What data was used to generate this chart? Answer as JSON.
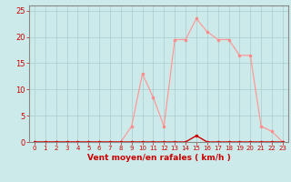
{
  "x": [
    0,
    1,
    2,
    3,
    4,
    5,
    6,
    7,
    8,
    9,
    10,
    11,
    12,
    13,
    14,
    15,
    16,
    17,
    18,
    19,
    20,
    21,
    22,
    23
  ],
  "y_rafales": [
    0,
    0,
    0,
    0,
    0,
    0,
    0,
    0,
    0,
    3,
    13,
    8.5,
    3,
    19.5,
    19.5,
    23.5,
    21,
    19.5,
    19.5,
    16.5,
    16.5,
    3,
    2,
    0
  ],
  "y_moyen": [
    0,
    0,
    0,
    0,
    0,
    0,
    0,
    0,
    0,
    0,
    0,
    0,
    0,
    0,
    0,
    1.2,
    0,
    0,
    0,
    0,
    0,
    0,
    0,
    0
  ],
  "xlabel": "Vent moyen/en rafales ( km/h )",
  "ylim": [
    0,
    26
  ],
  "xlim": [
    -0.5,
    23.5
  ],
  "yticks": [
    0,
    5,
    10,
    15,
    20,
    25
  ],
  "xticks": [
    0,
    1,
    2,
    3,
    4,
    5,
    6,
    7,
    8,
    9,
    10,
    11,
    12,
    13,
    14,
    15,
    16,
    17,
    18,
    19,
    20,
    21,
    22,
    23
  ],
  "bg_color": "#cceaea",
  "grid_color": "#aacccc",
  "line_color_rafales": "#ff9999",
  "line_color_moyen": "#cc0000",
  "marker_color_rafales": "#ff8888",
  "marker_color_moyen": "#cc0000",
  "xlabel_color": "#cc0000",
  "tick_color": "#cc0000",
  "axis_color": "#888888",
  "xlabel_fontsize": 6.5,
  "xlabel_fontweight": "bold",
  "tick_fontsize_x": 5.0,
  "tick_fontsize_y": 6.0,
  "linewidth_rafales": 0.9,
  "linewidth_moyen": 1.0,
  "markersize": 2.0
}
